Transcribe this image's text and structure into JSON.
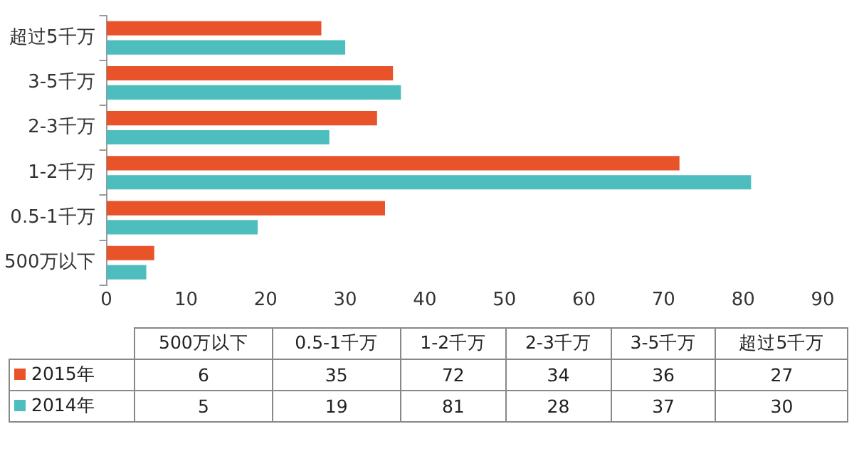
{
  "chart_data": [
    {
      "type": "bar",
      "orientation": "horizontal",
      "categories": [
        "超过5千万",
        "3-5千万",
        "2-3千万",
        "1-2千万",
        "0.5-1千万",
        "500万以下"
      ],
      "series": [
        {
          "color": "#e8532a",
          "values": [
            27,
            36,
            34,
            72,
            35,
            6
          ]
        },
        {
          "color": "#4dbdbd",
          "values": [
            30,
            37,
            28,
            81,
            19,
            5
          ]
        }
      ],
      "xlim": [
        0,
        90
      ],
      "xticks": [
        0,
        10,
        20,
        30,
        40,
        50,
        60,
        70,
        80,
        90
      ],
      "grid": false
    },
    {
      "type": "other",
      "categories": [
        "500万以下",
        "0.5-1千万",
        "1-2千万",
        "2-3千万",
        "3-5千万",
        "超过5千万"
      ],
      "series": [
        {
          "name": "2015年",
          "color": "#e8532a",
          "values": [
            6,
            35,
            72,
            34,
            36,
            27
          ]
        },
        {
          "name": "2014年",
          "color": "#4dbdbd",
          "values": [
            5,
            19,
            81,
            28,
            37,
            30
          ]
        }
      ],
      "legend": "left",
      "data_labels": true
    }
  ]
}
